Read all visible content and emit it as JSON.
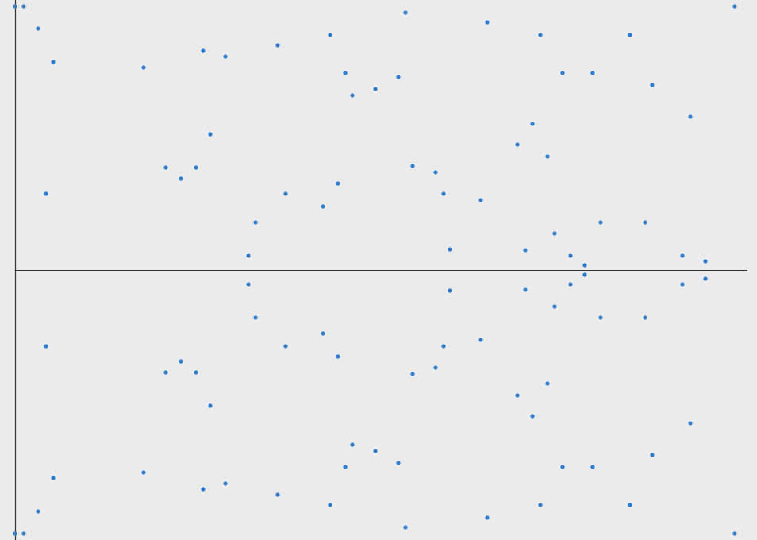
{
  "chart_data": {
    "type": "scatter",
    "title": "",
    "xlabel": "",
    "ylabel": "",
    "xlim": [
      0,
      923
    ],
    "ylim": [
      -340,
      340
    ],
    "grid": false,
    "legend": "none",
    "colors": {
      "background": "#ebebeb",
      "point": "#2f7bcc",
      "axis": "#333333"
    },
    "points": [
      [
        0,
        332
      ],
      [
        11,
        332
      ],
      [
        29,
        304
      ],
      [
        48,
        262
      ],
      [
        162,
        255
      ],
      [
        237,
        276
      ],
      [
        265,
        269
      ],
      [
        246,
        171
      ],
      [
        190,
        129
      ],
      [
        209,
        115
      ],
      [
        228,
        129
      ],
      [
        39,
        96
      ],
      [
        331,
        283
      ],
      [
        397,
        296
      ],
      [
        416,
        248
      ],
      [
        425,
        220
      ],
      [
        454,
        228
      ],
      [
        483,
        243
      ],
      [
        492,
        324
      ],
      [
        595,
        312
      ],
      [
        662,
        296
      ],
      [
        690,
        248
      ],
      [
        728,
        248
      ],
      [
        775,
        296
      ],
      [
        803,
        233
      ],
      [
        907,
        332
      ],
      [
        851,
        193
      ],
      [
        652,
        184
      ],
      [
        633,
        158
      ],
      [
        671,
        143
      ],
      [
        501,
        131
      ],
      [
        530,
        123
      ],
      [
        540,
        96
      ],
      [
        587,
        88
      ],
      [
        341,
        96
      ],
      [
        407,
        109
      ],
      [
        388,
        80
      ],
      [
        303,
        60
      ],
      [
        294,
        18
      ],
      [
        548,
        26
      ],
      [
        643,
        25
      ],
      [
        680,
        46
      ],
      [
        700,
        18
      ],
      [
        718,
        6
      ],
      [
        738,
        60
      ],
      [
        794,
        60
      ],
      [
        841,
        18
      ],
      [
        870,
        11
      ],
      [
        0,
        -332
      ],
      [
        11,
        -332
      ],
      [
        29,
        -304
      ],
      [
        48,
        -262
      ],
      [
        162,
        -255
      ],
      [
        237,
        -276
      ],
      [
        265,
        -269
      ],
      [
        246,
        -171
      ],
      [
        190,
        -129
      ],
      [
        209,
        -115
      ],
      [
        228,
        -129
      ],
      [
        39,
        -96
      ],
      [
        331,
        -283
      ],
      [
        397,
        -296
      ],
      [
        416,
        -248
      ],
      [
        425,
        -220
      ],
      [
        454,
        -228
      ],
      [
        483,
        -243
      ],
      [
        492,
        -324
      ],
      [
        595,
        -312
      ],
      [
        662,
        -296
      ],
      [
        690,
        -248
      ],
      [
        728,
        -248
      ],
      [
        775,
        -296
      ],
      [
        803,
        -233
      ],
      [
        907,
        -332
      ],
      [
        851,
        -193
      ],
      [
        652,
        -184
      ],
      [
        633,
        -158
      ],
      [
        671,
        -143
      ],
      [
        501,
        -131
      ],
      [
        530,
        -123
      ],
      [
        540,
        -96
      ],
      [
        587,
        -88
      ],
      [
        341,
        -96
      ],
      [
        407,
        -109
      ],
      [
        388,
        -80
      ],
      [
        303,
        -60
      ],
      [
        294,
        -18
      ],
      [
        548,
        -26
      ],
      [
        643,
        -25
      ],
      [
        680,
        -46
      ],
      [
        700,
        -18
      ],
      [
        718,
        -6
      ],
      [
        738,
        -60
      ],
      [
        794,
        -60
      ],
      [
        841,
        -18
      ],
      [
        870,
        -11
      ]
    ]
  }
}
